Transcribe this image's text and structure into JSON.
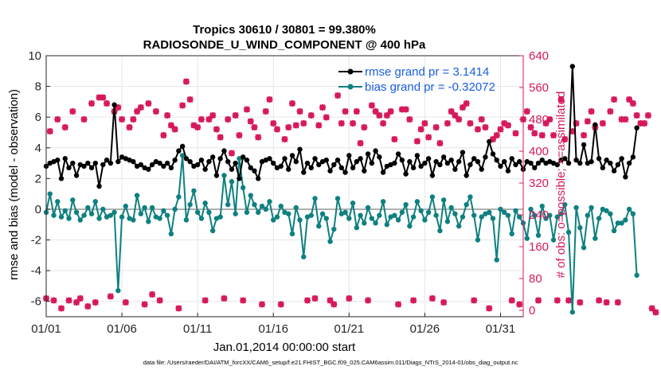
{
  "chart_data": {
    "type": "line",
    "title": "Tropics 30610 / 30801 = 99.380%",
    "subtitle": "RADIOSONDE_U_WIND_COMPONENT @ 400 hPa",
    "xlabel": "Jan.01,2014 00:00:00 start",
    "ylabel_left": "rmse and bias (model - observation)",
    "ylabel_right": "# of obs: o=possible; ×=assimilated",
    "x_ticks": [
      "01/01",
      "01/06",
      "01/11",
      "01/16",
      "01/21",
      "01/26",
      "01/31"
    ],
    "x_tick_days": [
      0,
      5,
      10,
      15,
      20,
      25,
      30
    ],
    "xlim": [
      0,
      31.5
    ],
    "ylim_left": [
      -7,
      10
    ],
    "ylim_right": [
      -16,
      640
    ],
    "yticks_left": [
      -6,
      -4,
      -2,
      0,
      2,
      4,
      6,
      8,
      10
    ],
    "yticks_right": [
      0,
      80,
      160,
      240,
      320,
      400,
      480,
      560,
      640
    ],
    "zero_line": 0,
    "x_step_days": 0.25,
    "colors": {
      "rmse": "#000000",
      "bias": "#0e8080",
      "obs": "#d6185c",
      "axis_right": "#d6185c",
      "zero": "#b0b0b0",
      "legend_text": "#1a5fe0"
    },
    "series": [
      {
        "name": "rmse grand pr = 3.1414",
        "color": "#000000",
        "values": [
          2.8,
          3.0,
          3.1,
          3.2,
          2.0,
          3.3,
          2.7,
          3.0,
          2.2,
          2.9,
          2.8,
          3.0,
          2.7,
          3.0,
          1.5,
          2.9,
          3.2,
          3.0,
          6.8,
          3.1,
          3.4,
          3.3,
          3.2,
          3.1,
          2.8,
          2.9,
          2.7,
          2.6,
          2.9,
          3.1,
          3.0,
          2.8,
          3.0,
          2.7,
          3.2,
          3.8,
          4.1,
          3.3,
          3.1,
          2.8,
          2.9,
          3.2,
          2.6,
          3.1,
          3.4,
          2.2,
          3.3,
          3.8,
          3.1,
          2.6,
          3.0,
          2.0,
          3.4,
          3.2,
          2.7,
          2.5,
          2.0,
          3.1,
          3.2,
          3.3,
          3.0,
          2.7,
          2.8,
          3.3,
          2.6,
          3.5,
          3.1,
          3.9,
          2.4,
          3.0,
          2.7,
          3.3,
          2.9,
          3.1,
          3.2,
          2.5,
          2.9,
          3.2,
          2.7,
          2.4,
          3.5,
          2.7,
          3.1,
          3.3,
          2.5,
          3.6,
          3.0,
          3.8,
          3.4,
          2.4,
          2.8,
          2.9,
          3.0,
          3.6,
          3.2,
          2.3,
          3.1,
          2.7,
          3.5,
          2.8,
          3.0,
          3.3,
          2.2,
          3.1,
          2.9,
          3.4,
          3.0,
          3.2,
          2.6,
          3.1,
          3.7,
          2.2,
          2.9,
          3.3,
          3.1,
          2.6,
          3.4,
          4.4,
          3.6,
          3.2,
          2.8,
          3.1,
          2.5,
          3.3,
          2.9,
          3.1,
          2.6,
          3.1,
          3.0,
          2.7,
          3.0,
          3.2,
          3.0,
          3.1,
          3.0,
          2.9,
          3.2,
          3.3,
          3.0,
          9.3,
          3.2,
          3.0,
          4.2,
          3.0,
          3.1,
          5.5,
          3.3,
          2.7,
          3.2,
          3.0,
          2.5,
          2.9,
          3.3,
          2.1,
          3.0,
          3.4,
          5.3
        ]
      },
      {
        "name": "bias grand pr = -0.32072",
        "color": "#0e8080",
        "values": [
          -0.2,
          1.0,
          -0.4,
          0.5,
          -0.5,
          -0.1,
          -0.6,
          0.6,
          -0.2,
          -0.7,
          -0.4,
          0.1,
          -0.3,
          0.5,
          -0.6,
          0.0,
          -0.5,
          -0.4,
          -0.2,
          -5.3,
          -0.5,
          0.2,
          -0.6,
          -0.7,
          0.9,
          -0.3,
          0.1,
          -0.8,
          0.1,
          -0.5,
          -0.6,
          -0.1,
          -0.4,
          -1.6,
          0.0,
          0.8,
          3.5,
          -0.7,
          0.3,
          1.2,
          -0.2,
          -0.6,
          0.4,
          -0.2,
          -1.4,
          -0.6,
          -0.5,
          2.2,
          0.3,
          1.8,
          -0.3,
          3.3,
          1.4,
          -0.2,
          0.9,
          0.3,
          -0.2,
          0.2,
          0.0,
          0.5,
          -0.7,
          -0.5,
          0.2,
          -0.2,
          -0.3,
          -1.6,
          0.1,
          -0.7,
          -3.1,
          -0.5,
          -0.4,
          0.7,
          -1.1,
          -0.3,
          -0.6,
          -2.1,
          -1.3,
          0.7,
          -0.3,
          -0.2,
          -0.6,
          0.4,
          -1.2,
          -0.4,
          -0.9,
          0.1,
          -0.6,
          -0.9,
          -0.4,
          0.5,
          -1.0,
          -0.5,
          -0.4,
          -0.7,
          -0.2,
          0.3,
          -1.1,
          -0.5,
          0.5,
          -0.1,
          -0.7,
          -0.2,
          0.8,
          -0.4,
          -1.4,
          0.6,
          -0.8,
          0.1,
          -0.3,
          -1.1,
          -0.5,
          0.3,
          0.8,
          -0.4,
          -2.0,
          -0.5,
          -0.3,
          -0.2,
          -0.6,
          -3.3,
          0.0,
          -0.2,
          -0.4,
          -1.6,
          -0.1,
          -0.5,
          -0.9,
          -1.9,
          0.0,
          -0.4,
          -1.7,
          0.2,
          -0.6,
          -0.4,
          -2.0,
          -0.5,
          -0.3,
          0.3,
          -1.5,
          -6.7,
          0.1,
          -1.2,
          -2.5,
          -0.4,
          0.1,
          -1.9,
          -0.6,
          0.0,
          -0.1,
          -0.3,
          -1.4,
          -0.9,
          -0.9,
          -0.7,
          0.0,
          -0.3,
          -4.3
        ]
      },
      {
        "name": "obs possible",
        "color": "#d6185c",
        "marker": "o",
        "values": [
          30,
          450,
          25,
          480,
          5,
          460,
          25,
          500,
          20,
          30,
          480,
          10,
          520,
          20,
          535,
          535,
          520,
          35,
          500,
          510,
          480,
          20,
          460,
          480,
          500,
          510,
          15,
          520,
          40,
          500,
          25,
          440,
          490,
          465,
          455,
          5,
          515,
          575,
          530,
          465,
          460,
          480,
          25,
          480,
          490,
          455,
          435,
          30,
          480,
          395,
          490,
          440,
          25,
          505,
          475,
          460,
          435,
          15,
          500,
          530,
          470,
          455,
          15,
          430,
          460,
          520,
          465,
          500,
          470,
          25,
          490,
          30,
          465,
          510,
          485,
          25,
          15,
          540,
          470,
          500,
          30,
          470,
          500,
          420,
          460,
          25,
          515,
          500,
          490,
          470,
          490,
          500,
          430,
          15,
          505,
          505,
          480,
          25,
          425,
          455,
          470,
          435,
          30,
          460,
          420,
          20,
          470,
          500,
          490,
          480,
          510,
          520,
          470,
          25,
          455,
          480,
          460,
          5,
          430,
          440,
          455,
          470,
          465,
          25,
          445,
          15,
          480,
          500,
          460,
          445,
          25,
          440,
          470,
          480,
          440,
          25,
          530,
          430,
          25,
          450,
          470,
          20,
          440,
          475,
          500,
          460,
          25,
          470,
          20,
          500,
          530,
          20,
          480,
          480,
          530,
          520,
          490,
          470,
          470,
          490,
          5,
          -5
        ]
      },
      {
        "name": "obs assimilated",
        "color": "#d6185c",
        "marker": "x",
        "values": [
          30,
          450,
          25,
          480,
          5,
          460,
          25,
          500,
          20,
          30,
          480,
          10,
          520,
          20,
          535,
          535,
          520,
          35,
          500,
          510,
          480,
          20,
          460,
          480,
          500,
          510,
          15,
          520,
          40,
          500,
          25,
          440,
          490,
          465,
          455,
          5,
          515,
          575,
          530,
          465,
          460,
          480,
          25,
          480,
          490,
          455,
          435,
          30,
          480,
          395,
          490,
          440,
          25,
          505,
          475,
          460,
          435,
          15,
          500,
          530,
          470,
          455,
          15,
          430,
          460,
          520,
          465,
          500,
          470,
          25,
          490,
          30,
          465,
          510,
          485,
          25,
          15,
          540,
          470,
          500,
          30,
          470,
          500,
          420,
          460,
          25,
          515,
          500,
          490,
          470,
          490,
          500,
          430,
          15,
          505,
          505,
          480,
          25,
          425,
          455,
          470,
          435,
          30,
          460,
          420,
          20,
          470,
          500,
          490,
          480,
          510,
          520,
          470,
          25,
          455,
          480,
          460,
          5,
          430,
          440,
          455,
          470,
          465,
          25,
          445,
          15,
          480,
          500,
          460,
          445,
          25,
          440,
          470,
          480,
          440,
          25,
          530,
          430,
          25,
          450,
          470,
          20,
          440,
          475,
          500,
          460,
          25,
          470,
          20,
          500,
          530,
          20,
          480,
          480,
          530,
          520,
          490,
          470,
          470,
          490,
          5,
          -5
        ]
      }
    ],
    "legend": {
      "placement": "top-right",
      "entries": [
        "rmse grand pr = 3.1414",
        "bias grand pr = -0.32072"
      ]
    },
    "grid": true
  },
  "footer": "data file: /Users/raeder/DAI/ATM_forcXX/CAM6_setup/f.e21.FHIST_BGC.f09_025.CAM6assim.011/Diags_NTrS_2014-01/obs_diag_output.nc"
}
